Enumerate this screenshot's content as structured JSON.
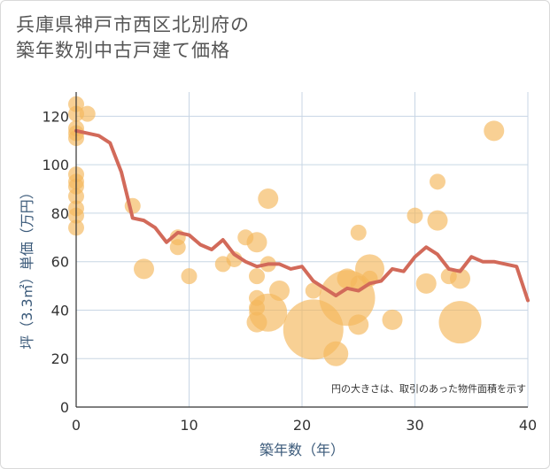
{
  "title_line1": "兵庫県神戸市西区北別府の",
  "title_line2": "築年数別中古戸建て価格",
  "chart_data": {
    "type": "scatter",
    "title": "兵庫県神戸市西区北別府の築年数別中古戸建て価格",
    "xlabel": "築年数（年）",
    "ylabel": "坪（3.3㎡）単価（万円）",
    "xlim": [
      0,
      40
    ],
    "ylim": [
      0,
      130
    ],
    "xticks": [
      0,
      10,
      20,
      30,
      40
    ],
    "yticks": [
      0,
      20,
      40,
      60,
      80,
      100,
      120
    ],
    "annotation": "円の大きさは、取引のあった物件面積を示す",
    "colors": {
      "bubble": "#f5b75a",
      "line": "#d26a5a",
      "grid": "#c8d6e4"
    },
    "bubbles": [
      {
        "x": 0,
        "y": 125,
        "s": 2
      },
      {
        "x": 0,
        "y": 121,
        "s": 2
      },
      {
        "x": 1,
        "y": 121,
        "s": 2
      },
      {
        "x": 0,
        "y": 115,
        "s": 2
      },
      {
        "x": 0,
        "y": 113,
        "s": 2
      },
      {
        "x": 0,
        "y": 111,
        "s": 2
      },
      {
        "x": 0,
        "y": 96,
        "s": 2
      },
      {
        "x": 0,
        "y": 93,
        "s": 2
      },
      {
        "x": 0,
        "y": 91,
        "s": 2
      },
      {
        "x": 0,
        "y": 87,
        "s": 2
      },
      {
        "x": 0,
        "y": 82,
        "s": 2
      },
      {
        "x": 0,
        "y": 79,
        "s": 2
      },
      {
        "x": 0,
        "y": 74,
        "s": 2
      },
      {
        "x": 5,
        "y": 83,
        "s": 2
      },
      {
        "x": 6,
        "y": 57,
        "s": 3
      },
      {
        "x": 9,
        "y": 70,
        "s": 2
      },
      {
        "x": 9,
        "y": 66,
        "s": 2
      },
      {
        "x": 10,
        "y": 54,
        "s": 2
      },
      {
        "x": 13,
        "y": 59,
        "s": 2
      },
      {
        "x": 14,
        "y": 61,
        "s": 2
      },
      {
        "x": 15,
        "y": 70,
        "s": 2
      },
      {
        "x": 16,
        "y": 68,
        "s": 3
      },
      {
        "x": 16,
        "y": 54,
        "s": 2
      },
      {
        "x": 16,
        "y": 45,
        "s": 2
      },
      {
        "x": 16,
        "y": 41,
        "s": 2
      },
      {
        "x": 16,
        "y": 35,
        "s": 3
      },
      {
        "x": 17,
        "y": 86,
        "s": 3
      },
      {
        "x": 17,
        "y": 59,
        "s": 2
      },
      {
        "x": 17,
        "y": 39,
        "s": 7
      },
      {
        "x": 18,
        "y": 48,
        "s": 3
      },
      {
        "x": 21,
        "y": 32,
        "s": 12
      },
      {
        "x": 21,
        "y": 48,
        "s": 2
      },
      {
        "x": 23,
        "y": 22,
        "s": 4
      },
      {
        "x": 24,
        "y": 53,
        "s": 3
      },
      {
        "x": 24,
        "y": 45,
        "s": 11
      },
      {
        "x": 25,
        "y": 72,
        "s": 2
      },
      {
        "x": 25,
        "y": 51,
        "s": 2
      },
      {
        "x": 25,
        "y": 34,
        "s": 3
      },
      {
        "x": 26,
        "y": 57,
        "s": 5
      },
      {
        "x": 26,
        "y": 53,
        "s": 2
      },
      {
        "x": 28,
        "y": 36,
        "s": 3
      },
      {
        "x": 30,
        "y": 79,
        "s": 2
      },
      {
        "x": 31,
        "y": 51,
        "s": 3
      },
      {
        "x": 32,
        "y": 93,
        "s": 2
      },
      {
        "x": 32,
        "y": 77,
        "s": 3
      },
      {
        "x": 33,
        "y": 54,
        "s": 2
      },
      {
        "x": 34,
        "y": 53,
        "s": 3
      },
      {
        "x": 34,
        "y": 35,
        "s": 8
      },
      {
        "x": 37,
        "y": 114,
        "s": 3
      }
    ],
    "trend": {
      "x": [
        0,
        1,
        2,
        3,
        4,
        5,
        6,
        7,
        8,
        9,
        10,
        11,
        12,
        13,
        14,
        15,
        16,
        17,
        18,
        19,
        20,
        21,
        22,
        23,
        24,
        25,
        26,
        27,
        28,
        29,
        30,
        31,
        32,
        33,
        34,
        35,
        36,
        37,
        38,
        39,
        40
      ],
      "y": [
        114,
        113,
        112,
        109,
        97,
        78,
        77,
        74,
        68,
        72,
        71,
        67,
        65,
        69,
        63,
        60,
        58,
        59,
        59,
        57,
        58,
        52,
        49,
        46,
        49,
        48,
        51,
        52,
        57,
        56,
        62,
        66,
        63,
        57,
        56,
        62,
        60,
        60,
        59,
        58,
        44
      ]
    }
  }
}
